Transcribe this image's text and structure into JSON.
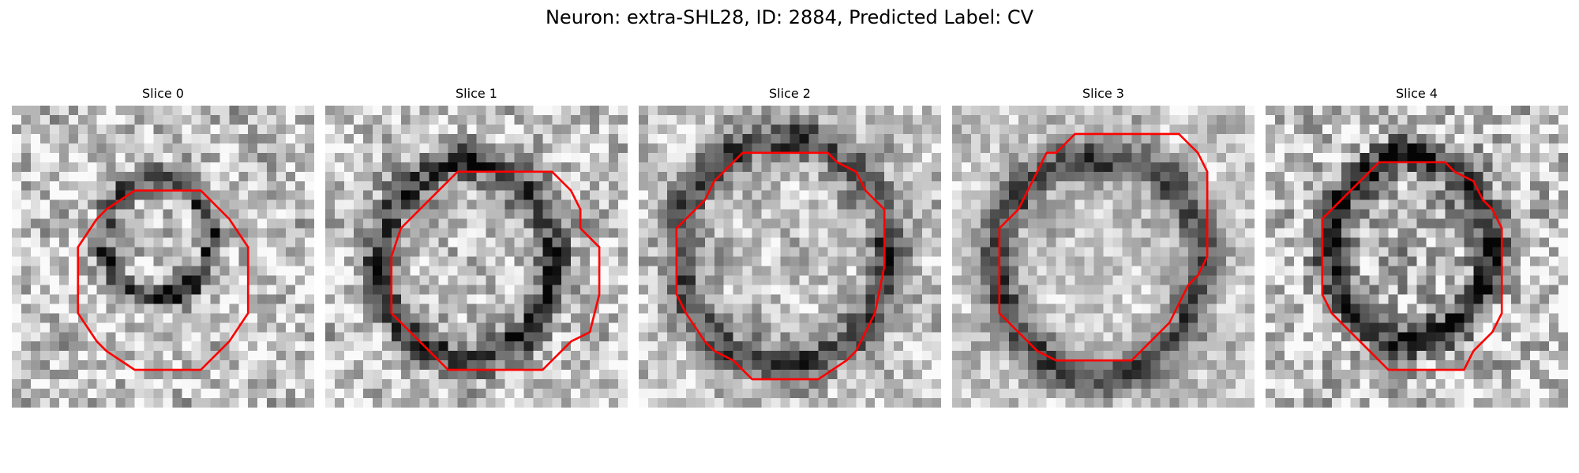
{
  "title": "Neuron: extra-SHL28, ID: 2884, Predicted Label: CV",
  "contour_color": "#ff0000",
  "slices": [
    {
      "label": "Slice 0"
    },
    {
      "label": "Slice 1"
    },
    {
      "label": "Slice 2"
    },
    {
      "label": "Slice 3"
    },
    {
      "label": "Slice 4"
    }
  ]
}
